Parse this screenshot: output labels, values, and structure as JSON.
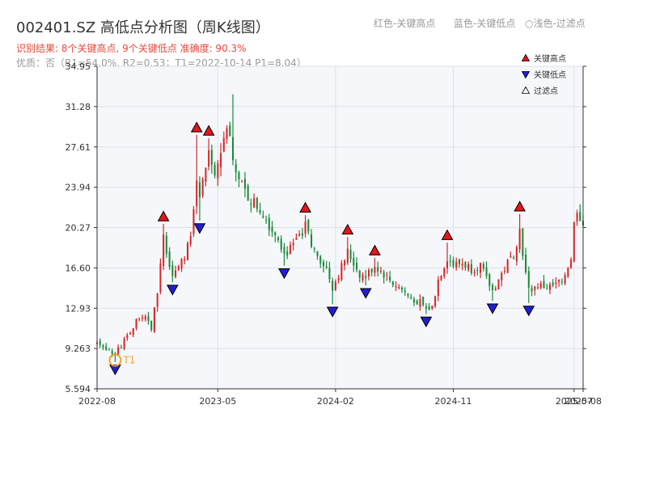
{
  "title": "002401.SZ 高低点分析图（周K线图）",
  "legend_top": {
    "red": "红色-关键高点",
    "blue": "蓝色-关键低点",
    "light": "○浅色-过滤点"
  },
  "subtitle": {
    "line1": "识别结果: 8个关键高点, 9个关键低点  准确度: 90.3%",
    "line2": "优质：否（R1=54.0%, R2=0.53；T1=2022-10-14 P1=8.04）"
  },
  "colors": {
    "up": "#d62728",
    "down": "#1a8a3a",
    "key_high": "#e8141c",
    "key_low": "#1f1fd0",
    "t1": "#f0a030",
    "plot_bg": "#f5f7fa",
    "grid": "#dde2e8"
  },
  "chart_data": {
    "type": "candlestick",
    "title": "002401.SZ 高低点分析图（周K线图）",
    "y_ticks": [
      5.594,
      9.263,
      12.93,
      16.6,
      20.27,
      23.94,
      27.61,
      31.28,
      34.95
    ],
    "y_tick_labels": [
      "5.594",
      "9.263",
      "12.93",
      "16.60",
      "20.27",
      "23.94",
      "27.61",
      "31.28",
      "34.95"
    ],
    "ylim": [
      5.594,
      34.95
    ],
    "x_tick_labels": [
      {
        "label": "2022-08",
        "week": 0
      },
      {
        "label": "2023-05",
        "week": 40
      },
      {
        "label": "2024-02",
        "week": 79
      },
      {
        "label": "2024-11",
        "week": 118
      },
      {
        "label": "2025-07",
        "week": 158
      },
      {
        "label": "2025-08",
        "week": 161
      }
    ],
    "x_range": [
      0,
      161
    ],
    "grid": true,
    "legend": {
      "position": "top-right",
      "entries": [
        {
          "label": "关键高点",
          "marker": "triangle-up",
          "color": "#e8141c"
        },
        {
          "label": "关键低点",
          "marker": "triangle-down",
          "color": "#1f1fd0"
        },
        {
          "label": "过滤点",
          "marker": "triangle-up-open",
          "color": "#ffffff"
        }
      ]
    },
    "key_highs": [
      {
        "week": 22,
        "price": 20.6
      },
      {
        "week": 33,
        "price": 28.7
      },
      {
        "week": 37,
        "price": 28.4
      },
      {
        "week": 69,
        "price": 21.4
      },
      {
        "week": 83,
        "price": 19.4
      },
      {
        "week": 92,
        "price": 17.5
      },
      {
        "week": 116,
        "price": 18.9
      },
      {
        "week": 140,
        "price": 21.5
      }
    ],
    "key_lows": [
      {
        "week": 6,
        "price": 8.04
      },
      {
        "week": 25,
        "price": 15.3
      },
      {
        "week": 34,
        "price": 20.9
      },
      {
        "week": 62,
        "price": 16.8
      },
      {
        "week": 78,
        "price": 13.3
      },
      {
        "week": 89,
        "price": 15.0
      },
      {
        "week": 109,
        "price": 12.4
      },
      {
        "week": 131,
        "price": 13.6
      },
      {
        "week": 143,
        "price": 13.4
      }
    ],
    "t1_marker": {
      "week": 6,
      "price": 8.2,
      "label": "T1"
    },
    "anchors": [
      [
        0,
        9.6
      ],
      [
        3,
        9.2
      ],
      [
        6,
        8.8
      ],
      [
        8,
        9.5
      ],
      [
        10,
        10.5
      ],
      [
        13,
        11.7
      ],
      [
        16,
        12.0
      ],
      [
        18,
        11.0
      ],
      [
        20,
        14.5
      ],
      [
        22,
        19.3
      ],
      [
        24,
        17.0
      ],
      [
        25,
        16.0
      ],
      [
        28,
        17.0
      ],
      [
        31,
        19.5
      ],
      [
        33,
        25.0
      ],
      [
        34,
        23.0
      ],
      [
        37,
        27.0
      ],
      [
        39,
        25.0
      ],
      [
        41,
        26.5
      ],
      [
        43,
        29.5
      ],
      [
        45,
        27.0
      ],
      [
        47,
        24.5
      ],
      [
        50,
        23.0
      ],
      [
        52,
        22.5
      ],
      [
        55,
        21.5
      ],
      [
        58,
        20.0
      ],
      [
        60,
        19.5
      ],
      [
        62,
        17.8
      ],
      [
        65,
        18.5
      ],
      [
        67,
        19.5
      ],
      [
        69,
        20.5
      ],
      [
        71,
        18.5
      ],
      [
        73,
        17.8
      ],
      [
        76,
        16.5
      ],
      [
        78,
        14.8
      ],
      [
        80,
        16.0
      ],
      [
        83,
        18.0
      ],
      [
        85,
        17.0
      ],
      [
        87,
        16.0
      ],
      [
        89,
        15.8
      ],
      [
        92,
        16.8
      ],
      [
        95,
        16.0
      ],
      [
        98,
        15.2
      ],
      [
        101,
        14.6
      ],
      [
        104,
        13.8
      ],
      [
        107,
        13.5
      ],
      [
        109,
        12.8
      ],
      [
        111,
        13.0
      ],
      [
        113,
        15.5
      ],
      [
        116,
        17.5
      ],
      [
        118,
        16.8
      ],
      [
        121,
        17.0
      ],
      [
        124,
        16.5
      ],
      [
        127,
        16.8
      ],
      [
        129,
        15.5
      ],
      [
        131,
        14.5
      ],
      [
        133,
        15.5
      ],
      [
        136,
        17.0
      ],
      [
        138,
        17.8
      ],
      [
        140,
        20.0
      ],
      [
        142,
        16.0
      ],
      [
        143,
        14.5
      ],
      [
        146,
        15.0
      ],
      [
        149,
        14.8
      ],
      [
        152,
        15.0
      ],
      [
        155,
        16.0
      ],
      [
        157,
        17.5
      ],
      [
        158,
        20.5
      ],
      [
        159,
        22.0
      ],
      [
        161,
        20.5
      ]
    ]
  }
}
